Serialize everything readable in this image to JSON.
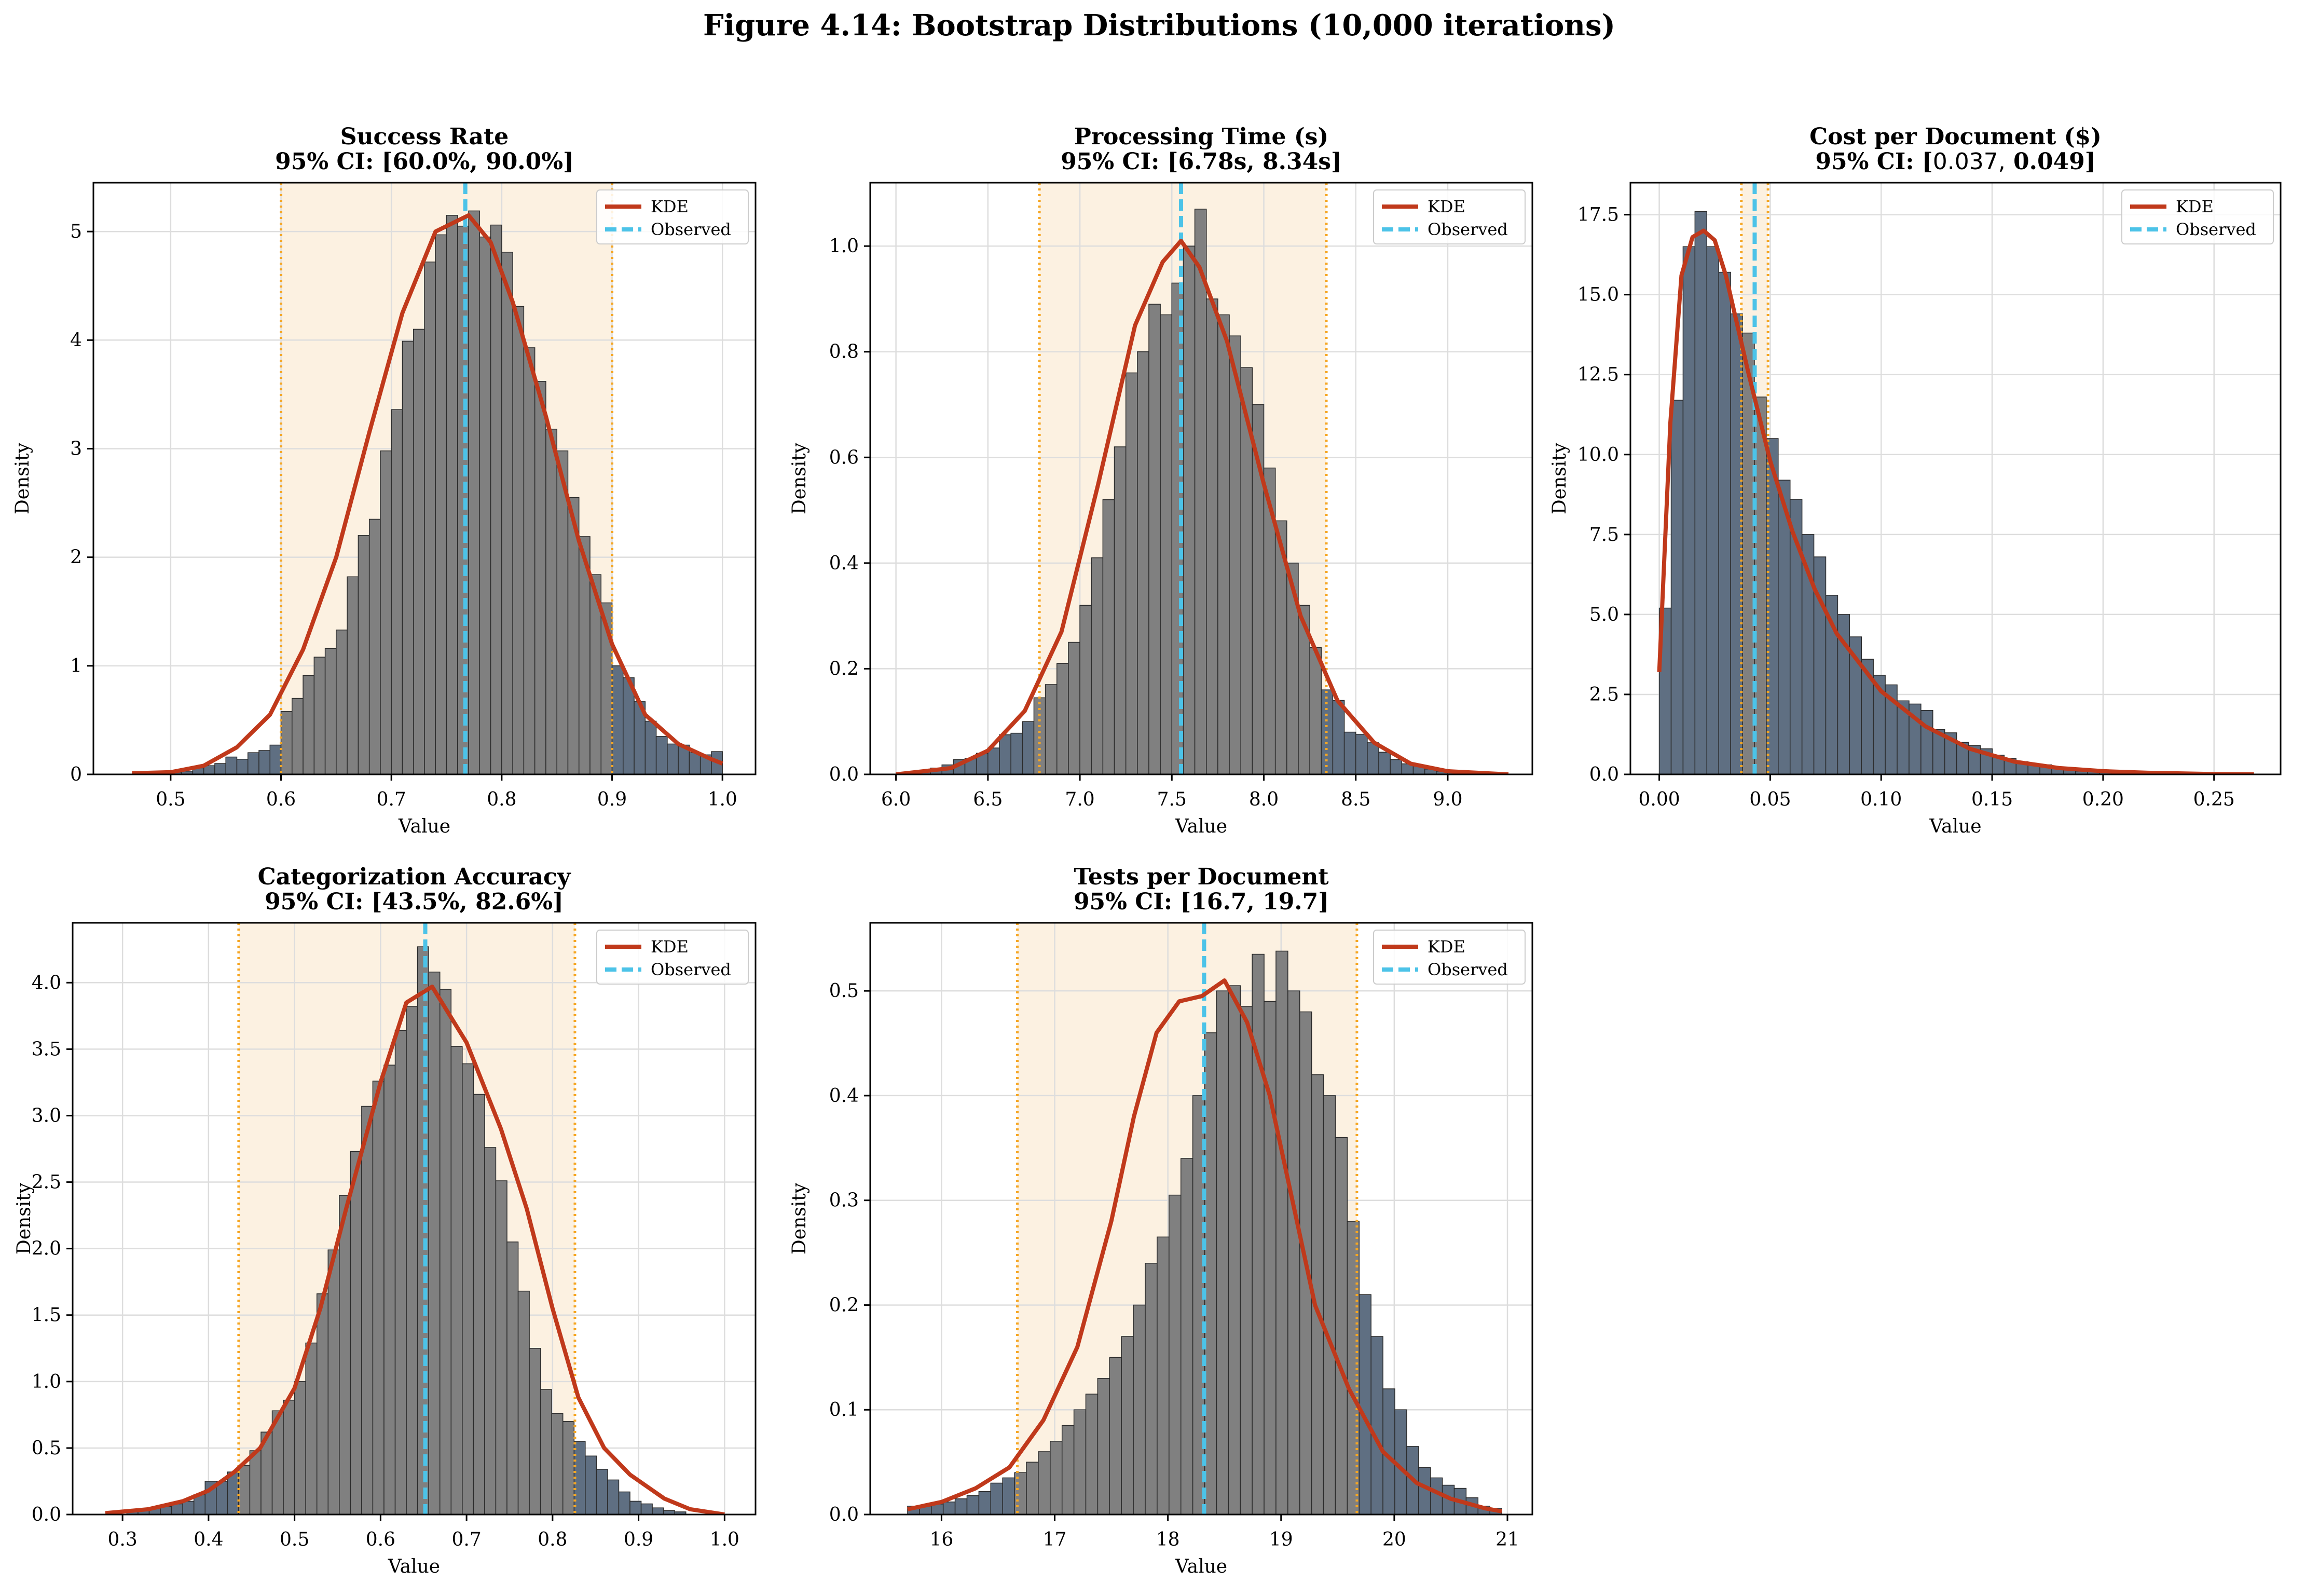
{
  "figure": {
    "title": "Figure 4.14: Bootstrap Distributions (10,000 iterations)"
  },
  "colors": {
    "bar_inside": "#808080",
    "bar_outside": "#5f6f82",
    "bar_edge": "#2b2b2b",
    "kde": "#c0391b",
    "observed": "#4cc3e8",
    "ci_line": "#f5a623",
    "ci_fill": "#fcf1e1",
    "grid": "#dddddd"
  },
  "legend": {
    "kde_label": "KDE",
    "observed_label": "Observed"
  },
  "chart_data": [
    {
      "type": "bar",
      "title": "Success Rate",
      "subtitle": "95% CI: [60.0%, 90.0%]",
      "xlabel": "Value",
      "ylabel": "Density",
      "xlim": [
        0.43,
        1.03
      ],
      "ylim": [
        0,
        5.45
      ],
      "xticks": [
        0.5,
        0.6,
        0.7,
        0.8,
        0.9,
        1.0
      ],
      "xtick_labels": [
        "0.5",
        "0.6",
        "0.7",
        "0.8",
        "0.9",
        "1.0"
      ],
      "yticks": [
        0,
        1,
        2,
        3,
        4,
        5
      ],
      "ytick_labels": [
        "0",
        "1",
        "2",
        "3",
        "4",
        "5"
      ],
      "ci": [
        0.6,
        0.9
      ],
      "observed": 0.767,
      "legend_position": "top-right",
      "grid": true,
      "bins": {
        "start": 0.5,
        "width": 0.01,
        "values": [
          0.02,
          0.03,
          0.06,
          0.08,
          0.1,
          0.16,
          0.14,
          0.2,
          0.22,
          0.27,
          0.58,
          0.7,
          0.91,
          1.08,
          1.16,
          1.33,
          1.82,
          2.2,
          2.35,
          2.98,
          3.36,
          3.99,
          4.1,
          4.72,
          4.97,
          5.15,
          5.05,
          5.19,
          4.95,
          5.06,
          4.81,
          4.31,
          3.93,
          3.62,
          3.18,
          2.98,
          2.55,
          2.19,
          1.84,
          1.58,
          1.0,
          0.89,
          0.67,
          0.49,
          0.35,
          0.28,
          0.27,
          0.2,
          0.18,
          0.21
        ]
      },
      "kde": {
        "x": [
          0.465,
          0.5,
          0.53,
          0.56,
          0.59,
          0.62,
          0.65,
          0.68,
          0.71,
          0.74,
          0.77,
          0.79,
          0.81,
          0.84,
          0.87,
          0.9,
          0.93,
          0.96,
          0.99,
          1.0
        ],
        "y": [
          0.01,
          0.02,
          0.08,
          0.25,
          0.55,
          1.15,
          2.0,
          3.15,
          4.25,
          5.0,
          5.15,
          4.9,
          4.35,
          3.3,
          2.15,
          1.2,
          0.55,
          0.28,
          0.14,
          0.1
        ]
      }
    },
    {
      "type": "bar",
      "title": "Processing Time (s)",
      "subtitle": "95% CI: [6.78s, 8.34s]",
      "xlabel": "Value",
      "ylabel": "Density",
      "xlim": [
        5.86,
        9.46
      ],
      "ylim": [
        0,
        1.12
      ],
      "xticks": [
        6.0,
        6.5,
        7.0,
        7.5,
        8.0,
        8.5,
        9.0
      ],
      "xtick_labels": [
        "6.0",
        "6.5",
        "7.0",
        "7.5",
        "8.0",
        "8.5",
        "9.0"
      ],
      "yticks": [
        0,
        0.2,
        0.4,
        0.6,
        0.8,
        1.0
      ],
      "ytick_labels": [
        "0.0",
        "0.2",
        "0.4",
        "0.6",
        "0.8",
        "1.0"
      ],
      "ci": [
        6.78,
        8.34
      ],
      "observed": 7.55,
      "legend_position": "top-right",
      "grid": true,
      "bins": {
        "start": 6.0,
        "width": 0.0625,
        "values": [
          0.0,
          0.004,
          0.008,
          0.012,
          0.018,
          0.028,
          0.03,
          0.04,
          0.05,
          0.075,
          0.078,
          0.1,
          0.145,
          0.17,
          0.21,
          0.25,
          0.32,
          0.41,
          0.52,
          0.62,
          0.76,
          0.8,
          0.89,
          0.87,
          0.93,
          1.0,
          1.07,
          0.9,
          0.87,
          0.83,
          0.77,
          0.7,
          0.58,
          0.48,
          0.4,
          0.32,
          0.24,
          0.16,
          0.14,
          0.08,
          0.076,
          0.06,
          0.042,
          0.028,
          0.02,
          0.016,
          0.01,
          0.006,
          0.004,
          0.002
        ]
      },
      "kde": {
        "x": [
          6.0,
          6.3,
          6.5,
          6.7,
          6.9,
          7.1,
          7.3,
          7.45,
          7.55,
          7.65,
          7.8,
          8.0,
          8.2,
          8.4,
          8.6,
          8.8,
          9.0,
          9.33
        ],
        "y": [
          0.0,
          0.012,
          0.045,
          0.12,
          0.27,
          0.55,
          0.85,
          0.97,
          1.01,
          0.96,
          0.82,
          0.55,
          0.3,
          0.14,
          0.06,
          0.02,
          0.006,
          0.0
        ]
      }
    },
    {
      "type": "bar",
      "title": "Cost per Document ($)",
      "subtitle": "95% CI: [",
      "subtitle_math": "0.037,",
      "subtitle_end": " 0.049]",
      "xlabel": "Value",
      "ylabel": "Density",
      "xlim": [
        -0.013,
        0.28
      ],
      "ylim": [
        0,
        18.5
      ],
      "xticks": [
        0.0,
        0.05,
        0.1,
        0.15,
        0.2,
        0.25
      ],
      "xtick_labels": [
        "0.00",
        "0.05",
        "0.10",
        "0.15",
        "0.20",
        "0.25"
      ],
      "yticks": [
        0,
        2.5,
        5,
        7.5,
        10,
        12.5,
        15,
        17.5
      ],
      "ytick_labels": [
        "0.0",
        "2.5",
        "5.0",
        "7.5",
        "10.0",
        "12.5",
        "15.0",
        "17.5"
      ],
      "ci": [
        0.037,
        0.049
      ],
      "observed": 0.043,
      "legend_position": "top-right",
      "grid": true,
      "bins": {
        "start": 0.0,
        "width": 0.00536,
        "values": [
          5.2,
          11.7,
          16.5,
          17.6,
          16.5,
          15.7,
          14.4,
          13.8,
          11.8,
          10.5,
          9.2,
          8.6,
          7.5,
          6.8,
          5.6,
          5.0,
          4.3,
          3.6,
          3.1,
          2.8,
          2.3,
          2.2,
          2.0,
          1.4,
          1.3,
          1.0,
          0.9,
          0.8,
          0.6,
          0.5,
          0.4,
          0.3,
          0.3,
          0.2,
          0.2,
          0.1,
          0.1,
          0.08,
          0.06,
          0.05,
          0.04,
          0.03,
          0.02,
          0.02,
          0.01,
          0.01,
          0.01,
          0.01,
          0.005,
          0.005
        ]
      },
      "kde": {
        "x": [
          0.0,
          0.005,
          0.01,
          0.015,
          0.02,
          0.025,
          0.03,
          0.04,
          0.05,
          0.06,
          0.07,
          0.08,
          0.1,
          0.12,
          0.14,
          0.16,
          0.18,
          0.2,
          0.22,
          0.25,
          0.268
        ],
        "y": [
          3.2,
          11.0,
          15.6,
          16.8,
          17.0,
          16.7,
          15.6,
          12.6,
          9.8,
          7.6,
          5.8,
          4.4,
          2.6,
          1.5,
          0.8,
          0.4,
          0.2,
          0.1,
          0.05,
          0.01,
          0.0
        ]
      }
    },
    {
      "type": "bar",
      "title": "Categorization Accuracy",
      "subtitle": "95% CI: [43.5%, 82.6%]",
      "xlabel": "Value",
      "ylabel": "Density",
      "xlim": [
        0.242,
        1.036
      ],
      "ylim": [
        0,
        4.45
      ],
      "xticks": [
        0.3,
        0.4,
        0.5,
        0.6,
        0.7,
        0.8,
        0.9,
        1.0
      ],
      "xtick_labels": [
        "0.3",
        "0.4",
        "0.5",
        "0.6",
        "0.7",
        "0.8",
        "0.9",
        "1.0"
      ],
      "yticks": [
        0,
        0.5,
        1.0,
        1.5,
        2.0,
        2.5,
        3.0,
        3.5,
        4.0
      ],
      "ytick_labels": [
        "0.0",
        "0.5",
        "1.0",
        "1.5",
        "2.0",
        "2.5",
        "3.0",
        "3.5",
        "4.0"
      ],
      "ci": [
        0.435,
        0.826
      ],
      "observed": 0.652,
      "legend_position": "top-right",
      "grid": true,
      "bins": {
        "start": 0.305,
        "width": 0.013,
        "values": [
          0.02,
          0.03,
          0.05,
          0.06,
          0.08,
          0.1,
          0.15,
          0.25,
          0.25,
          0.32,
          0.37,
          0.48,
          0.62,
          0.78,
          0.86,
          1.0,
          1.29,
          1.66,
          1.99,
          2.4,
          2.73,
          3.07,
          3.26,
          3.38,
          3.64,
          3.82,
          4.27,
          4.08,
          3.95,
          3.52,
          3.39,
          3.16,
          2.76,
          2.51,
          2.05,
          1.68,
          1.25,
          0.94,
          0.76,
          0.7,
          0.55,
          0.44,
          0.34,
          0.26,
          0.17,
          0.1,
          0.08,
          0.05,
          0.03,
          0.02
        ]
      },
      "kde": {
        "x": [
          0.28,
          0.33,
          0.37,
          0.4,
          0.43,
          0.46,
          0.5,
          0.53,
          0.56,
          0.6,
          0.63,
          0.66,
          0.7,
          0.74,
          0.77,
          0.8,
          0.83,
          0.86,
          0.89,
          0.93,
          0.96,
          1.0
        ],
        "y": [
          0.01,
          0.04,
          0.1,
          0.18,
          0.32,
          0.5,
          0.95,
          1.55,
          2.3,
          3.25,
          3.85,
          3.97,
          3.55,
          2.9,
          2.3,
          1.55,
          0.88,
          0.5,
          0.3,
          0.12,
          0.04,
          0.0
        ]
      }
    },
    {
      "type": "bar",
      "title": "Tests per Document",
      "subtitle": "95% CI: [16.7, 19.7]",
      "xlabel": "Value",
      "ylabel": "Density",
      "xlim": [
        15.37,
        21.22
      ],
      "ylim": [
        0,
        0.565
      ],
      "xticks": [
        16,
        17,
        18,
        19,
        20,
        21
      ],
      "xtick_labels": [
        "16",
        "17",
        "18",
        "19",
        "20",
        "21"
      ],
      "yticks": [
        0,
        0.1,
        0.2,
        0.3,
        0.4,
        0.5
      ],
      "ytick_labels": [
        "0.0",
        "0.1",
        "0.2",
        "0.3",
        "0.4",
        "0.5"
      ],
      "ci": [
        16.67,
        19.67
      ],
      "observed": 18.32,
      "legend_position": "top-right",
      "grid": true,
      "bins": {
        "start": 15.7,
        "width": 0.105,
        "values": [
          0.008,
          0.008,
          0.01,
          0.012,
          0.015,
          0.018,
          0.022,
          0.03,
          0.035,
          0.04,
          0.05,
          0.06,
          0.07,
          0.085,
          0.1,
          0.115,
          0.13,
          0.15,
          0.17,
          0.2,
          0.24,
          0.265,
          0.305,
          0.34,
          0.4,
          0.46,
          0.5,
          0.505,
          0.485,
          0.535,
          0.49,
          0.538,
          0.5,
          0.48,
          0.42,
          0.4,
          0.36,
          0.28,
          0.21,
          0.17,
          0.12,
          0.1,
          0.065,
          0.045,
          0.035,
          0.028,
          0.025,
          0.016,
          0.008,
          0.006
        ]
      },
      "kde": {
        "x": [
          15.7,
          16.0,
          16.3,
          16.6,
          16.9,
          17.2,
          17.5,
          17.7,
          17.9,
          18.1,
          18.3,
          18.5,
          18.7,
          18.9,
          19.1,
          19.3,
          19.6,
          19.9,
          20.2,
          20.5,
          20.8,
          20.95
        ],
        "y": [
          0.005,
          0.012,
          0.025,
          0.045,
          0.09,
          0.16,
          0.28,
          0.38,
          0.46,
          0.49,
          0.495,
          0.51,
          0.47,
          0.4,
          0.3,
          0.2,
          0.12,
          0.06,
          0.03,
          0.015,
          0.006,
          0.003
        ]
      }
    }
  ]
}
